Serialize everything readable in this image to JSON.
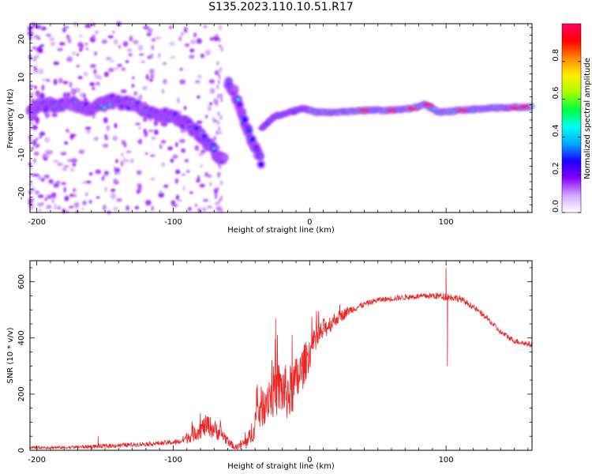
{
  "title": "S135.2023.110.10.51.R17",
  "chart_data": [
    {
      "type": "heatmap",
      "title": "",
      "xlabel": "Height of straight line (km)",
      "ylabel": "Frequency (Hz)",
      "xlim": [
        -205,
        163
      ],
      "ylim": [
        -25,
        24
      ],
      "x_ticks": [
        -200,
        -100,
        0,
        100
      ],
      "y_ticks": [
        -20,
        -10,
        0,
        10,
        20
      ],
      "colorbar": {
        "label": "Normalized spectral amplitude",
        "range": [
          0,
          1
        ],
        "ticks": [
          0.0,
          0.2,
          0.4,
          0.6,
          0.8
        ],
        "colors": [
          "#ffffff",
          "#d0a8ff",
          "#8a00ff",
          "#1a00ff",
          "#00aaff",
          "#00ffee",
          "#00ff40",
          "#aaff00",
          "#ffee00",
          "#ff8800",
          "#ff0000",
          "#ff0066"
        ]
      },
      "tracks": [
        {
          "name_hidden": true,
          "points": [
            [
              -205,
              2
            ],
            [
              -190,
              3
            ],
            [
              -175,
              3
            ],
            [
              -160,
              2
            ],
            [
              -145,
              4
            ],
            [
              -130,
              3
            ],
            [
              -115,
              1
            ],
            [
              -100,
              0
            ],
            [
              -90,
              -2
            ],
            [
              -80,
              -5
            ],
            [
              -70,
              -9
            ],
            [
              -62,
              -12
            ]
          ]
        },
        {
          "name_hidden": true,
          "points": [
            [
              -60,
              9
            ],
            [
              -55,
              6
            ],
            [
              -50,
              1
            ],
            [
              -45,
              -4
            ],
            [
              -40,
              -8
            ],
            [
              -35,
              -12
            ]
          ]
        },
        {
          "name_hidden": true,
          "points": [
            [
              -35,
              -3
            ],
            [
              -25,
              0
            ],
            [
              -15,
              1
            ],
            [
              -5,
              2
            ],
            [
              5,
              1
            ],
            [
              20,
              1
            ],
            [
              40,
              1.5
            ],
            [
              60,
              1.5
            ],
            [
              75,
              2
            ],
            [
              85,
              3
            ],
            [
              95,
              1
            ],
            [
              110,
              1.5
            ],
            [
              130,
              2
            ],
            [
              163,
              2.5
            ]
          ]
        }
      ]
    },
    {
      "type": "line",
      "title": "",
      "xlabel": "Height of straight line (km)",
      "ylabel": "SNR (10 * v/v)",
      "xlim": [
        -205,
        163
      ],
      "ylim": [
        0,
        675
      ],
      "x_ticks": [
        -200,
        -100,
        0,
        100
      ],
      "y_ticks": [
        0,
        200,
        400,
        600
      ],
      "color": "#ee2222",
      "envelope": {
        "x": [
          -205,
          -180,
          -150,
          -130,
          -110,
          -95,
          -85,
          -75,
          -65,
          -55,
          -45,
          -38,
          -30,
          -22,
          -15,
          -8,
          0,
          10,
          20,
          30,
          40,
          50,
          60,
          70,
          80,
          90,
          100,
          110,
          120,
          130,
          140,
          150,
          163
        ],
        "y": [
          10,
          10,
          15,
          20,
          25,
          30,
          60,
          90,
          60,
          10,
          30,
          130,
          200,
          220,
          200,
          260,
          350,
          430,
          470,
          500,
          520,
          535,
          540,
          545,
          548,
          550,
          548,
          540,
          510,
          470,
          420,
          390,
          375
        ],
        "amp": [
          5,
          5,
          8,
          8,
          8,
          10,
          30,
          40,
          30,
          8,
          30,
          70,
          90,
          100,
          100,
          90,
          60,
          40,
          25,
          15,
          10,
          10,
          10,
          10,
          10,
          12,
          15,
          12,
          10,
          10,
          10,
          10,
          10
        ]
      },
      "spikes": [
        [
          100,
          650
        ],
        [
          101,
          300
        ],
        [
          -155,
          50
        ],
        [
          -25,
          470
        ]
      ]
    }
  ]
}
